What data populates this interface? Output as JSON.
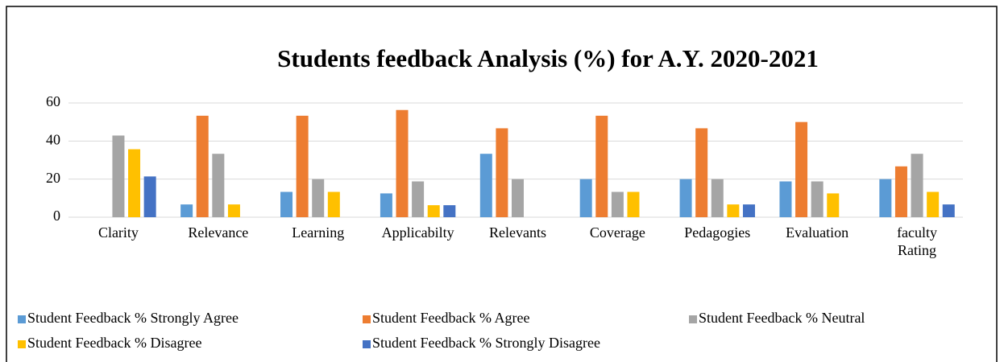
{
  "chart_data": {
    "type": "bar",
    "title": "Students feedback Analysis (%) for A.Y. 2020-2021",
    "categories": [
      "Clarity",
      "Relevance",
      "Learning",
      "Applicabilty",
      "Relevants",
      "Coverage",
      "Pedagogies",
      "Evaluation",
      "faculty Rating"
    ],
    "series": [
      {
        "name": "Student Feedback % Strongly Agree",
        "color": "#5b9bd5",
        "values": [
          0,
          6.7,
          13.3,
          12.5,
          33.3,
          20,
          20,
          18.8,
          20
        ]
      },
      {
        "name": "Student Feedback % Agree",
        "color": "#ed7d31",
        "values": [
          0,
          53.3,
          53.3,
          56.3,
          46.7,
          53.3,
          46.7,
          50,
          26.7
        ]
      },
      {
        "name": "Student Feedback % Neutral",
        "color": "#a5a5a5",
        "values": [
          42.9,
          33.3,
          20,
          18.8,
          20,
          13.3,
          20,
          18.8,
          33.3
        ]
      },
      {
        "name": "Student Feedback % Disagree",
        "color": "#ffc000",
        "values": [
          35.7,
          6.7,
          13.3,
          6.3,
          0,
          13.3,
          6.7,
          12.5,
          13.3
        ]
      },
      {
        "name": "Student Feedback % Strongly Disagree",
        "color": "#4472c4",
        "values": [
          21.4,
          0,
          0,
          6.3,
          0,
          0,
          6.7,
          0,
          6.7
        ]
      }
    ],
    "ylim": [
      0,
      60
    ],
    "yticks": [
      0,
      20,
      40,
      60
    ],
    "grid": true,
    "legend": "bottom"
  }
}
